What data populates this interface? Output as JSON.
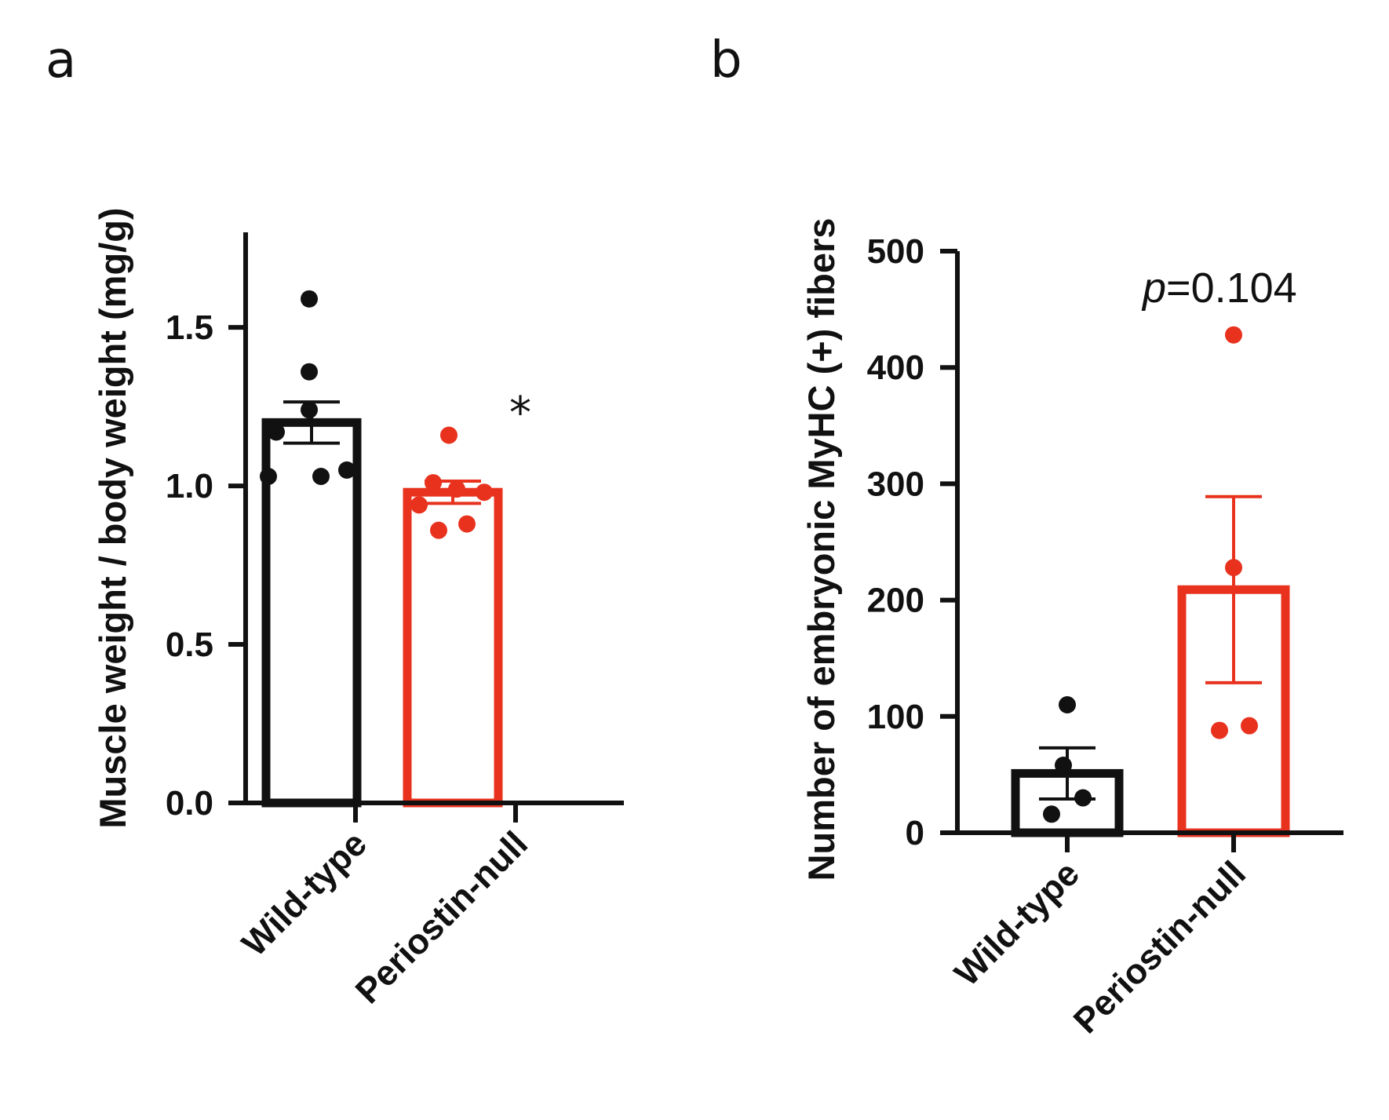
{
  "colors": {
    "wild_type": "#111111",
    "periostin_null": "#e8321e",
    "axis": "#111111"
  },
  "chart_data": [
    {
      "type": "bar",
      "panel_letter": "a",
      "ylabel": "Muscle weight / body weight (mg/g)",
      "xlabel": "",
      "ylim": [
        0,
        1.8
      ],
      "yticks": [
        0.0,
        0.5,
        1.0,
        1.5
      ],
      "ytick_labels": [
        "0.0",
        "0.5",
        "1.0",
        "1.5"
      ],
      "categories": [
        "Wild-type",
        "Periostin-null"
      ],
      "values": [
        1.2,
        0.98
      ],
      "sem": [
        0.065,
        0.035
      ],
      "points": [
        [
          1.59,
          1.36,
          1.24,
          1.17,
          1.03,
          1.03,
          1.05
        ],
        [
          1.16,
          1.01,
          0.99,
          0.98,
          0.94,
          0.88,
          0.86
        ]
      ],
      "annotation": "*",
      "annotation_category": 1
    },
    {
      "type": "bar",
      "panel_letter": "b",
      "ylabel": "Number of embryonic MyHC (+) fibers",
      "xlabel": "",
      "ylim": [
        0,
        500
      ],
      "yticks": [
        0,
        100,
        200,
        300,
        400,
        500
      ],
      "ytick_labels": [
        "0",
        "100",
        "200",
        "300",
        "400",
        "500"
      ],
      "categories": [
        "Wild-type",
        "Periostin-null"
      ],
      "values": [
        51,
        209
      ],
      "sem": [
        22,
        80
      ],
      "points": [
        [
          110,
          58,
          30,
          16
        ],
        [
          428,
          228,
          92,
          88
        ]
      ],
      "annotation_italic": "p",
      "annotation": "=0.104",
      "annotation_category": 1
    }
  ]
}
